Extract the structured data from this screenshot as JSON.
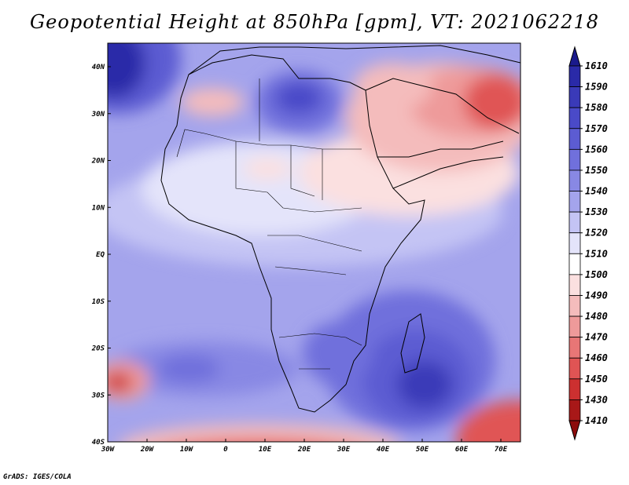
{
  "title": "Geopotential Height at 850hPa [gpm], VT: 2021062218",
  "credit": "GrADS: IGES/COLA",
  "axes": {
    "lon_labels": [
      "30W",
      "20W",
      "10W",
      "0",
      "10E",
      "20E",
      "30E",
      "40E",
      "50E",
      "60E",
      "70E"
    ],
    "lat_labels": [
      "40N",
      "30N",
      "20N",
      "10N",
      "EQ",
      "10S",
      "20S",
      "30S",
      "40S"
    ]
  },
  "colorbar": {
    "labels": [
      "1610",
      "1590",
      "1580",
      "1570",
      "1560",
      "1550",
      "1540",
      "1530",
      "1520",
      "1510",
      "1500",
      "1490",
      "1480",
      "1470",
      "1460",
      "1450",
      "1430",
      "1410"
    ],
    "colors": [
      "#1a1a8c",
      "#2a2aa8",
      "#3a3ab8",
      "#4a4ac8",
      "#5c5cd2",
      "#7070dc",
      "#8888e4",
      "#a4a4ec",
      "#c4c4f4",
      "#e4e4fa",
      "#ffffff",
      "#fbe0e0",
      "#f4bcbc",
      "#ee9a9a",
      "#e87676",
      "#e05454",
      "#cc3030",
      "#a81818",
      "#8c0c0c"
    ]
  },
  "map_colors": {
    "low_blue": "#3a3ab8",
    "mid_blue": "#8888e4",
    "pale_blue": "#c4c4f4",
    "white": "#ffffff",
    "pale_red": "#f4bcbc",
    "red": "#e05454",
    "dark_red": "#a81818"
  }
}
